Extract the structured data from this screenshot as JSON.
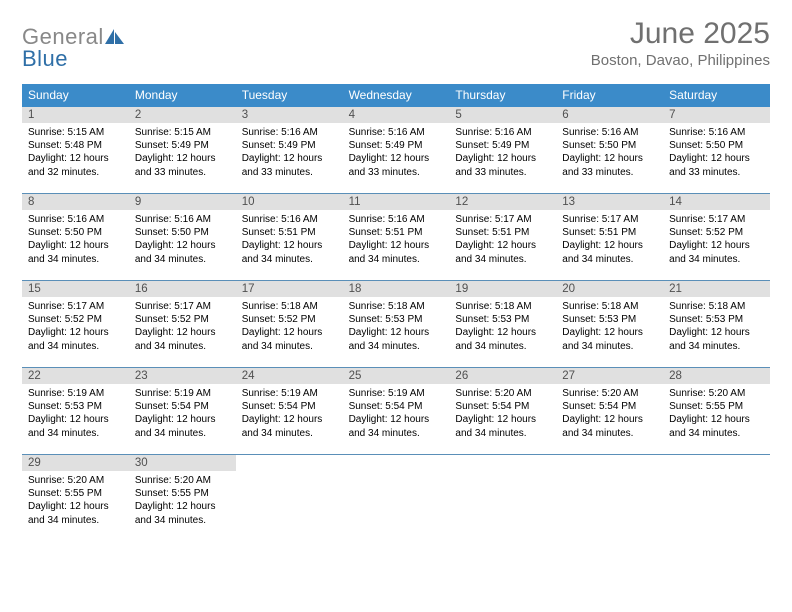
{
  "logo": {
    "part1": "General",
    "part2": "Blue"
  },
  "header": {
    "title": "June 2025",
    "subtitle": "Boston, Davao, Philippines"
  },
  "dayheaders": [
    "Sunday",
    "Monday",
    "Tuesday",
    "Wednesday",
    "Thursday",
    "Friday",
    "Saturday"
  ],
  "colors": {
    "dayheader_bg": "#3b8bc9",
    "rule": "#5a8fb8",
    "daynum_bg": "#e0e0e0",
    "logo_blue": "#2f6fa7",
    "header_grey": "#707070"
  },
  "weeks": [
    [
      {
        "num": "1",
        "sunrise": "Sunrise: 5:15 AM",
        "sunset": "Sunset: 5:48 PM",
        "daylight": "Daylight: 12 hours and 32 minutes."
      },
      {
        "num": "2",
        "sunrise": "Sunrise: 5:15 AM",
        "sunset": "Sunset: 5:49 PM",
        "daylight": "Daylight: 12 hours and 33 minutes."
      },
      {
        "num": "3",
        "sunrise": "Sunrise: 5:16 AM",
        "sunset": "Sunset: 5:49 PM",
        "daylight": "Daylight: 12 hours and 33 minutes."
      },
      {
        "num": "4",
        "sunrise": "Sunrise: 5:16 AM",
        "sunset": "Sunset: 5:49 PM",
        "daylight": "Daylight: 12 hours and 33 minutes."
      },
      {
        "num": "5",
        "sunrise": "Sunrise: 5:16 AM",
        "sunset": "Sunset: 5:49 PM",
        "daylight": "Daylight: 12 hours and 33 minutes."
      },
      {
        "num": "6",
        "sunrise": "Sunrise: 5:16 AM",
        "sunset": "Sunset: 5:50 PM",
        "daylight": "Daylight: 12 hours and 33 minutes."
      },
      {
        "num": "7",
        "sunrise": "Sunrise: 5:16 AM",
        "sunset": "Sunset: 5:50 PM",
        "daylight": "Daylight: 12 hours and 33 minutes."
      }
    ],
    [
      {
        "num": "8",
        "sunrise": "Sunrise: 5:16 AM",
        "sunset": "Sunset: 5:50 PM",
        "daylight": "Daylight: 12 hours and 34 minutes."
      },
      {
        "num": "9",
        "sunrise": "Sunrise: 5:16 AM",
        "sunset": "Sunset: 5:50 PM",
        "daylight": "Daylight: 12 hours and 34 minutes."
      },
      {
        "num": "10",
        "sunrise": "Sunrise: 5:16 AM",
        "sunset": "Sunset: 5:51 PM",
        "daylight": "Daylight: 12 hours and 34 minutes."
      },
      {
        "num": "11",
        "sunrise": "Sunrise: 5:16 AM",
        "sunset": "Sunset: 5:51 PM",
        "daylight": "Daylight: 12 hours and 34 minutes."
      },
      {
        "num": "12",
        "sunrise": "Sunrise: 5:17 AM",
        "sunset": "Sunset: 5:51 PM",
        "daylight": "Daylight: 12 hours and 34 minutes."
      },
      {
        "num": "13",
        "sunrise": "Sunrise: 5:17 AM",
        "sunset": "Sunset: 5:51 PM",
        "daylight": "Daylight: 12 hours and 34 minutes."
      },
      {
        "num": "14",
        "sunrise": "Sunrise: 5:17 AM",
        "sunset": "Sunset: 5:52 PM",
        "daylight": "Daylight: 12 hours and 34 minutes."
      }
    ],
    [
      {
        "num": "15",
        "sunrise": "Sunrise: 5:17 AM",
        "sunset": "Sunset: 5:52 PM",
        "daylight": "Daylight: 12 hours and 34 minutes."
      },
      {
        "num": "16",
        "sunrise": "Sunrise: 5:17 AM",
        "sunset": "Sunset: 5:52 PM",
        "daylight": "Daylight: 12 hours and 34 minutes."
      },
      {
        "num": "17",
        "sunrise": "Sunrise: 5:18 AM",
        "sunset": "Sunset: 5:52 PM",
        "daylight": "Daylight: 12 hours and 34 minutes."
      },
      {
        "num": "18",
        "sunrise": "Sunrise: 5:18 AM",
        "sunset": "Sunset: 5:53 PM",
        "daylight": "Daylight: 12 hours and 34 minutes."
      },
      {
        "num": "19",
        "sunrise": "Sunrise: 5:18 AM",
        "sunset": "Sunset: 5:53 PM",
        "daylight": "Daylight: 12 hours and 34 minutes."
      },
      {
        "num": "20",
        "sunrise": "Sunrise: 5:18 AM",
        "sunset": "Sunset: 5:53 PM",
        "daylight": "Daylight: 12 hours and 34 minutes."
      },
      {
        "num": "21",
        "sunrise": "Sunrise: 5:18 AM",
        "sunset": "Sunset: 5:53 PM",
        "daylight": "Daylight: 12 hours and 34 minutes."
      }
    ],
    [
      {
        "num": "22",
        "sunrise": "Sunrise: 5:19 AM",
        "sunset": "Sunset: 5:53 PM",
        "daylight": "Daylight: 12 hours and 34 minutes."
      },
      {
        "num": "23",
        "sunrise": "Sunrise: 5:19 AM",
        "sunset": "Sunset: 5:54 PM",
        "daylight": "Daylight: 12 hours and 34 minutes."
      },
      {
        "num": "24",
        "sunrise": "Sunrise: 5:19 AM",
        "sunset": "Sunset: 5:54 PM",
        "daylight": "Daylight: 12 hours and 34 minutes."
      },
      {
        "num": "25",
        "sunrise": "Sunrise: 5:19 AM",
        "sunset": "Sunset: 5:54 PM",
        "daylight": "Daylight: 12 hours and 34 minutes."
      },
      {
        "num": "26",
        "sunrise": "Sunrise: 5:20 AM",
        "sunset": "Sunset: 5:54 PM",
        "daylight": "Daylight: 12 hours and 34 minutes."
      },
      {
        "num": "27",
        "sunrise": "Sunrise: 5:20 AM",
        "sunset": "Sunset: 5:54 PM",
        "daylight": "Daylight: 12 hours and 34 minutes."
      },
      {
        "num": "28",
        "sunrise": "Sunrise: 5:20 AM",
        "sunset": "Sunset: 5:55 PM",
        "daylight": "Daylight: 12 hours and 34 minutes."
      }
    ],
    [
      {
        "num": "29",
        "sunrise": "Sunrise: 5:20 AM",
        "sunset": "Sunset: 5:55 PM",
        "daylight": "Daylight: 12 hours and 34 minutes."
      },
      {
        "num": "30",
        "sunrise": "Sunrise: 5:20 AM",
        "sunset": "Sunset: 5:55 PM",
        "daylight": "Daylight: 12 hours and 34 minutes."
      },
      null,
      null,
      null,
      null,
      null
    ]
  ]
}
